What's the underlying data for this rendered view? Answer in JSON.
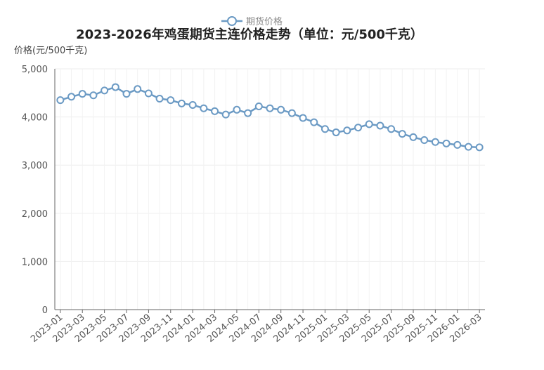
{
  "chart_data": {
    "type": "line",
    "title": "2023-2026年鸡蛋期货主连价格走势（单位：元/500千克）",
    "y_axis_label": "价格(元/500千克)",
    "categories": [
      "2023-01",
      null,
      "2023-03",
      null,
      "2023-05",
      null,
      "2023-07",
      null,
      "2023-09",
      null,
      "2023-11",
      null,
      "2024-01",
      null,
      "2024-03",
      null,
      "2024-05",
      null,
      "2024-07",
      null,
      "2024-09",
      null,
      "2024-11",
      null,
      "2025-01",
      null,
      "2025-03",
      null,
      "2025-05",
      null,
      "2025-07",
      null,
      "2025-09",
      null,
      "2025-11",
      null,
      "2026-01",
      null,
      "2026-03"
    ],
    "series": [
      {
        "name": "期货价格",
        "color": "#6b9ac4",
        "values": [
          4350,
          4420,
          4480,
          4450,
          4550,
          4620,
          4480,
          4580,
          4490,
          4380,
          4350,
          4280,
          4250,
          4180,
          4120,
          4050,
          4150,
          4080,
          4220,
          4180,
          4150,
          4080,
          3980,
          3890,
          3750,
          3680,
          3720,
          3780,
          3850,
          3820,
          3750,
          3650,
          3580,
          3520,
          3480,
          3450,
          3420,
          3380,
          3370
        ]
      }
    ],
    "ylim": [
      0,
      5000
    ],
    "yticks": [
      0,
      {
        "value": 1000,
        "label": "1,000"
      },
      {
        "value": 2000,
        "label": "2,000"
      },
      {
        "value": 3000,
        "label": "3,000"
      },
      {
        "value": 4000,
        "label": "4,000"
      },
      {
        "value": 5000,
        "label": "5,000"
      }
    ],
    "grid": true,
    "legend_position": "top"
  }
}
